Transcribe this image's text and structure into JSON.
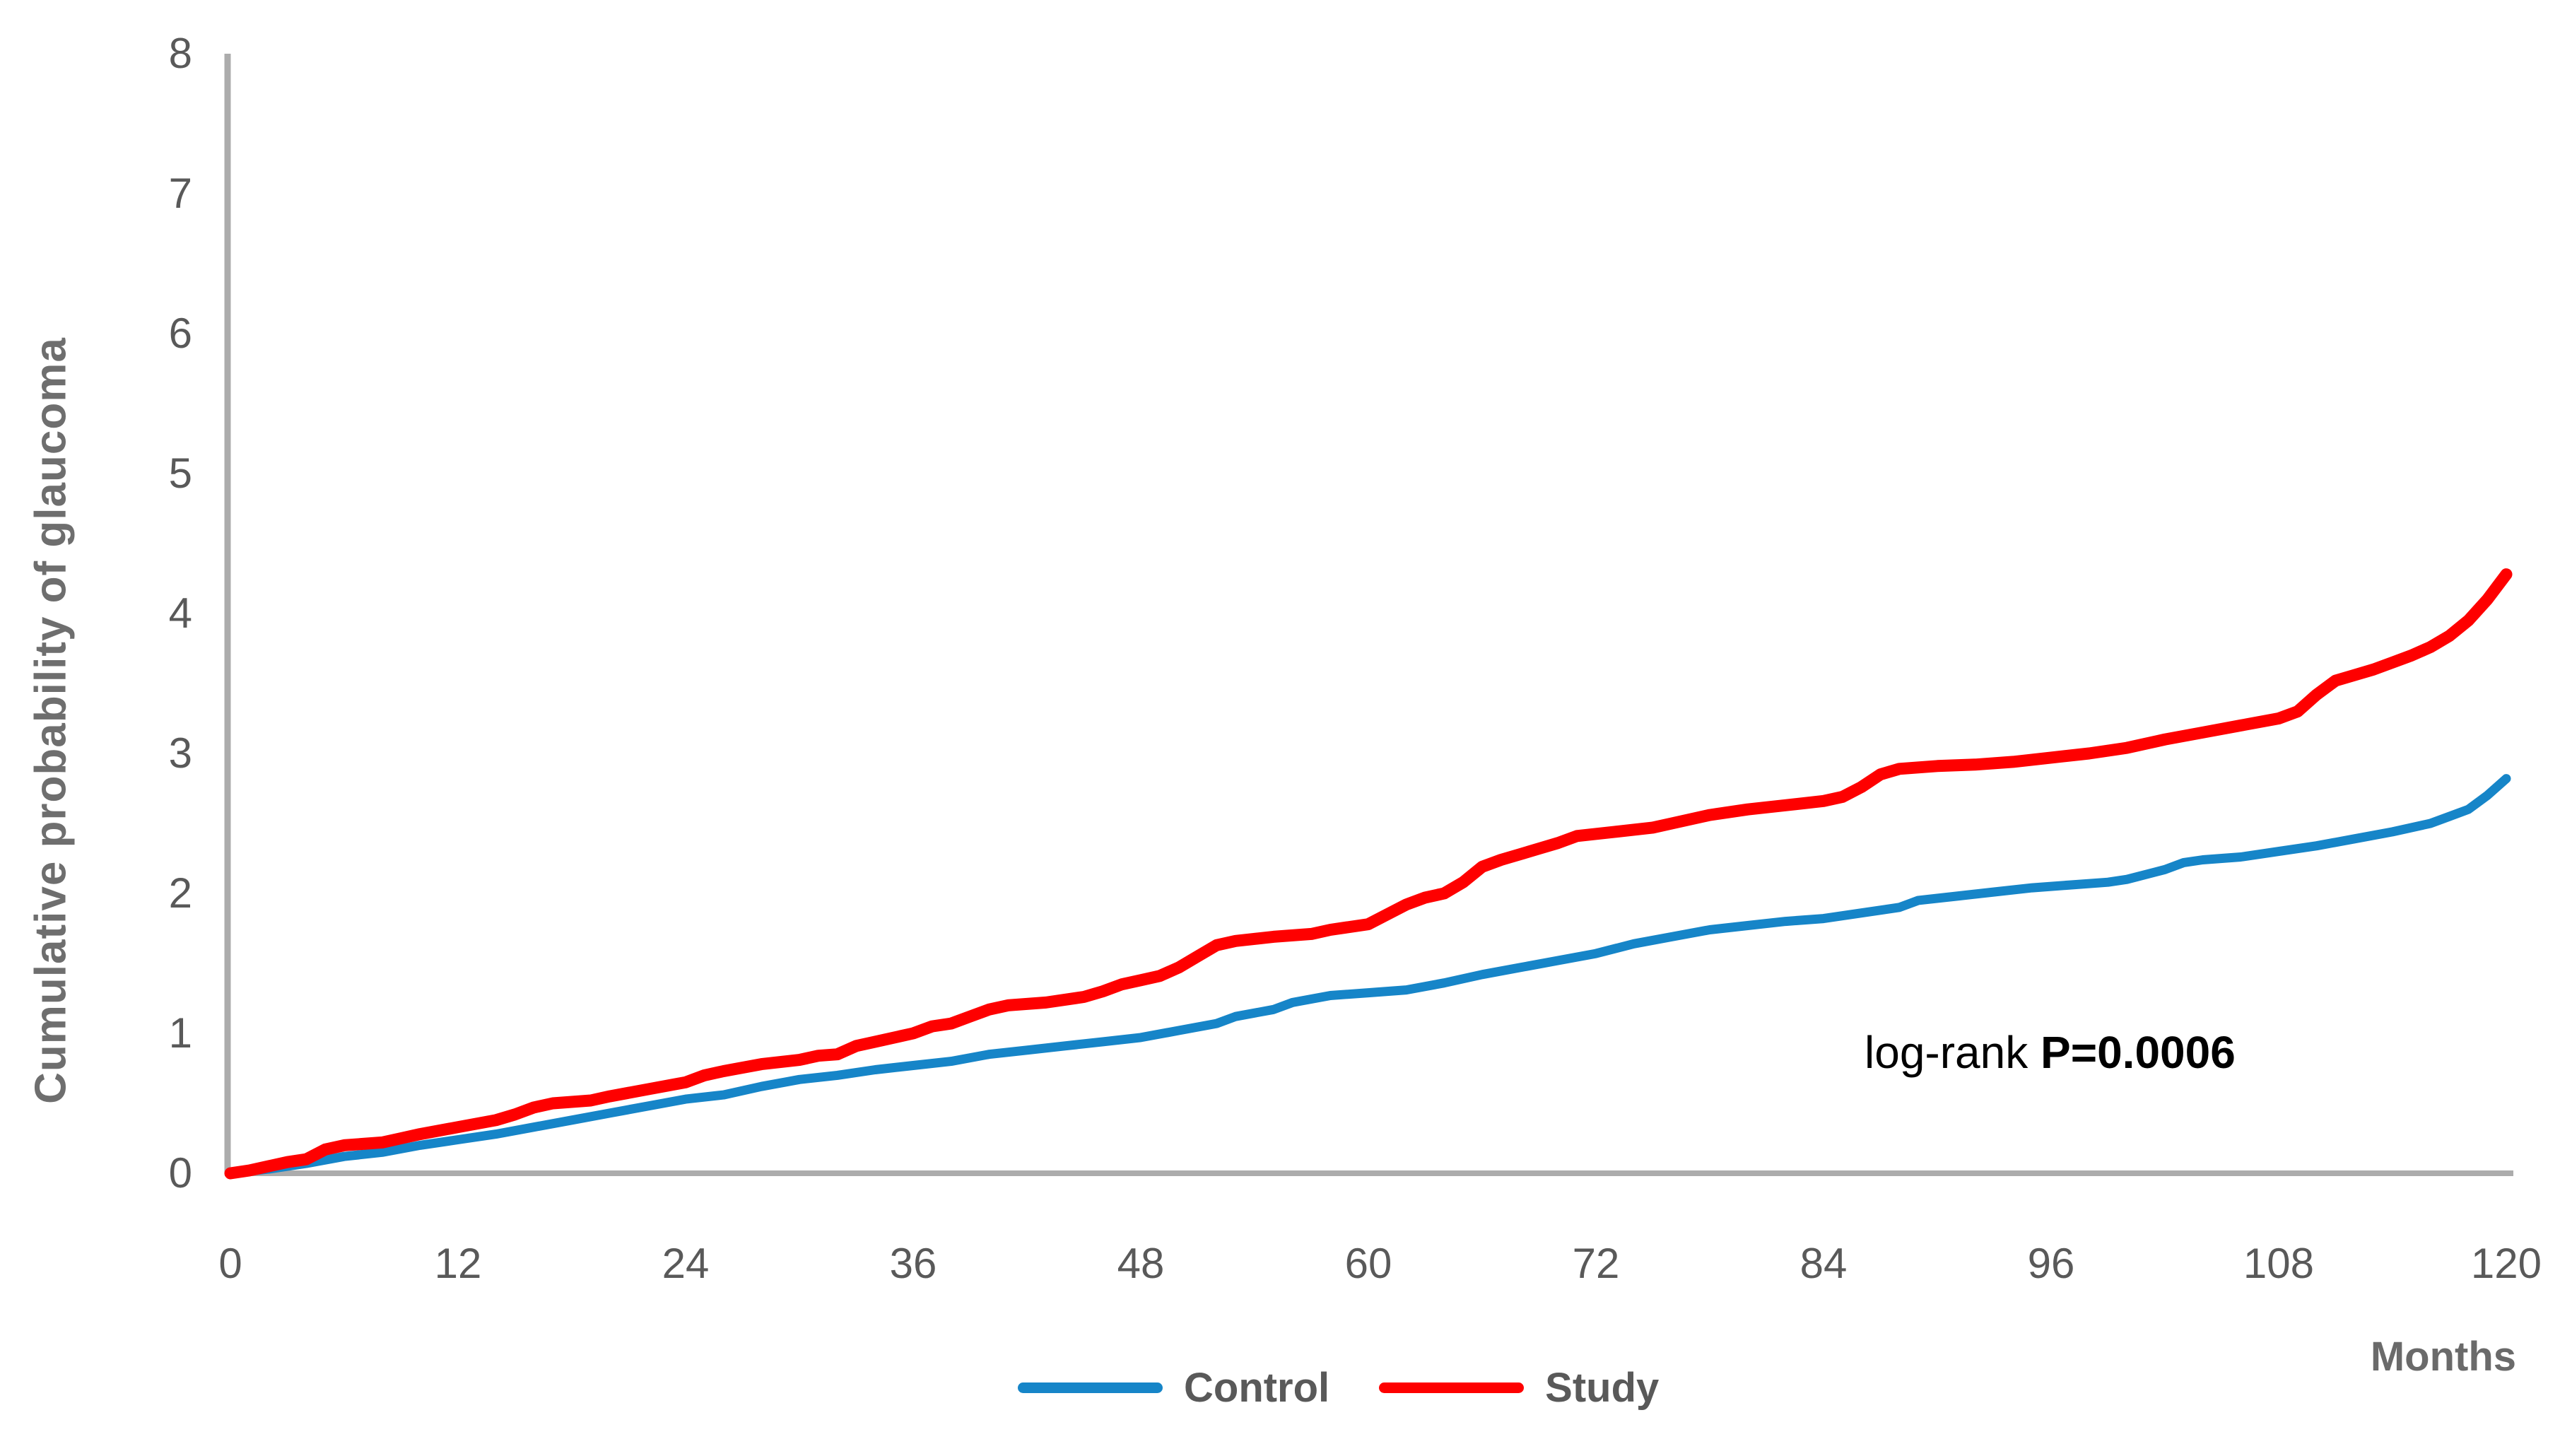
{
  "page_background": "#ffffff",
  "annotation_parts": {
    "prefix": "log-rank ",
    "value": "P=0.0006"
  },
  "chart_data": {
    "type": "line",
    "title": "",
    "xlabel": "Months",
    "ylabel": "Cumulative probability of glaucoma",
    "xlim": [
      0,
      120
    ],
    "ylim": [
      0,
      8
    ],
    "x_ticks": [
      0,
      12,
      24,
      36,
      48,
      60,
      72,
      84,
      96,
      108,
      120
    ],
    "y_ticks": [
      0,
      1,
      2,
      3,
      4,
      5,
      6,
      7,
      8
    ],
    "grid": false,
    "legend_position": "bottom",
    "annotation": "log-rank P=0.0006",
    "colors": {
      "control_line": "#1685C8",
      "study_line": "#FE0000",
      "axis_line": "#ACACAC",
      "tick_text": "#595959",
      "title_text": "#6E6E6E",
      "annotation_text": "#000000"
    },
    "series": [
      {
        "name": "Control",
        "color": "#1685C8",
        "points": [
          [
            0,
            0
          ],
          [
            2,
            0.03
          ],
          [
            4,
            0.07
          ],
          [
            6,
            0.12
          ],
          [
            8,
            0.15
          ],
          [
            10,
            0.2
          ],
          [
            12,
            0.24
          ],
          [
            14,
            0.28
          ],
          [
            16,
            0.33
          ],
          [
            18,
            0.38
          ],
          [
            20,
            0.43
          ],
          [
            22,
            0.48
          ],
          [
            24,
            0.53
          ],
          [
            26,
            0.56
          ],
          [
            28,
            0.62
          ],
          [
            30,
            0.67
          ],
          [
            32,
            0.7
          ],
          [
            34,
            0.74
          ],
          [
            36,
            0.77
          ],
          [
            38,
            0.8
          ],
          [
            40,
            0.85
          ],
          [
            42,
            0.88
          ],
          [
            44,
            0.91
          ],
          [
            46,
            0.94
          ],
          [
            48,
            0.97
          ],
          [
            50,
            1.02
          ],
          [
            52,
            1.07
          ],
          [
            53,
            1.12
          ],
          [
            55,
            1.17
          ],
          [
            56,
            1.22
          ],
          [
            58,
            1.27
          ],
          [
            60,
            1.29
          ],
          [
            62,
            1.31
          ],
          [
            64,
            1.36
          ],
          [
            66,
            1.42
          ],
          [
            68,
            1.47
          ],
          [
            70,
            1.52
          ],
          [
            72,
            1.57
          ],
          [
            74,
            1.64
          ],
          [
            76,
            1.69
          ],
          [
            78,
            1.74
          ],
          [
            80,
            1.77
          ],
          [
            82,
            1.8
          ],
          [
            84,
            1.82
          ],
          [
            86,
            1.86
          ],
          [
            88,
            1.9
          ],
          [
            89,
            1.95
          ],
          [
            91,
            1.98
          ],
          [
            93,
            2.01
          ],
          [
            95,
            2.04
          ],
          [
            97,
            2.06
          ],
          [
            99,
            2.08
          ],
          [
            100,
            2.1
          ],
          [
            102,
            2.17
          ],
          [
            103,
            2.22
          ],
          [
            104,
            2.24
          ],
          [
            106,
            2.26
          ],
          [
            108,
            2.3
          ],
          [
            110,
            2.34
          ],
          [
            112,
            2.39
          ],
          [
            114,
            2.44
          ],
          [
            116,
            2.5
          ],
          [
            117,
            2.55
          ],
          [
            118,
            2.6
          ],
          [
            119,
            2.7
          ],
          [
            120,
            2.82
          ]
        ]
      },
      {
        "name": "Study",
        "color": "#FE0000",
        "points": [
          [
            0,
            0
          ],
          [
            1,
            0.02
          ],
          [
            2,
            0.05
          ],
          [
            3,
            0.08
          ],
          [
            4,
            0.1
          ],
          [
            5,
            0.17
          ],
          [
            6,
            0.2
          ],
          [
            8,
            0.22
          ],
          [
            9,
            0.25
          ],
          [
            10,
            0.28
          ],
          [
            12,
            0.33
          ],
          [
            14,
            0.38
          ],
          [
            15,
            0.42
          ],
          [
            16,
            0.47
          ],
          [
            17,
            0.5
          ],
          [
            19,
            0.52
          ],
          [
            20,
            0.55
          ],
          [
            22,
            0.6
          ],
          [
            24,
            0.65
          ],
          [
            25,
            0.7
          ],
          [
            26,
            0.73
          ],
          [
            28,
            0.78
          ],
          [
            30,
            0.81
          ],
          [
            31,
            0.84
          ],
          [
            32,
            0.85
          ],
          [
            33,
            0.91
          ],
          [
            34,
            0.94
          ],
          [
            36,
            1.0
          ],
          [
            37,
            1.05
          ],
          [
            38,
            1.07
          ],
          [
            39,
            1.12
          ],
          [
            40,
            1.17
          ],
          [
            41,
            1.2
          ],
          [
            43,
            1.22
          ],
          [
            45,
            1.26
          ],
          [
            46,
            1.3
          ],
          [
            47,
            1.35
          ],
          [
            48,
            1.38
          ],
          [
            49,
            1.41
          ],
          [
            50,
            1.47
          ],
          [
            51,
            1.55
          ],
          [
            52,
            1.63
          ],
          [
            53,
            1.66
          ],
          [
            55,
            1.69
          ],
          [
            57,
            1.71
          ],
          [
            58,
            1.74
          ],
          [
            60,
            1.78
          ],
          [
            61,
            1.85
          ],
          [
            62,
            1.92
          ],
          [
            63,
            1.97
          ],
          [
            64,
            2.0
          ],
          [
            65,
            2.08
          ],
          [
            66,
            2.19
          ],
          [
            67,
            2.24
          ],
          [
            68,
            2.28
          ],
          [
            69,
            2.32
          ],
          [
            70,
            2.36
          ],
          [
            71,
            2.41
          ],
          [
            73,
            2.44
          ],
          [
            75,
            2.47
          ],
          [
            76,
            2.5
          ],
          [
            78,
            2.56
          ],
          [
            80,
            2.6
          ],
          [
            82,
            2.63
          ],
          [
            84,
            2.66
          ],
          [
            85,
            2.69
          ],
          [
            86,
            2.76
          ],
          [
            87,
            2.85
          ],
          [
            88,
            2.89
          ],
          [
            90,
            2.91
          ],
          [
            92,
            2.92
          ],
          [
            94,
            2.94
          ],
          [
            96,
            2.97
          ],
          [
            98,
            3.0
          ],
          [
            100,
            3.04
          ],
          [
            102,
            3.1
          ],
          [
            104,
            3.15
          ],
          [
            106,
            3.2
          ],
          [
            108,
            3.25
          ],
          [
            109,
            3.3
          ],
          [
            110,
            3.42
          ],
          [
            111,
            3.52
          ],
          [
            112,
            3.56
          ],
          [
            113,
            3.6
          ],
          [
            114,
            3.65
          ],
          [
            115,
            3.7
          ],
          [
            116,
            3.76
          ],
          [
            117,
            3.84
          ],
          [
            118,
            3.95
          ],
          [
            119,
            4.1
          ],
          [
            120,
            4.28
          ]
        ]
      }
    ]
  }
}
